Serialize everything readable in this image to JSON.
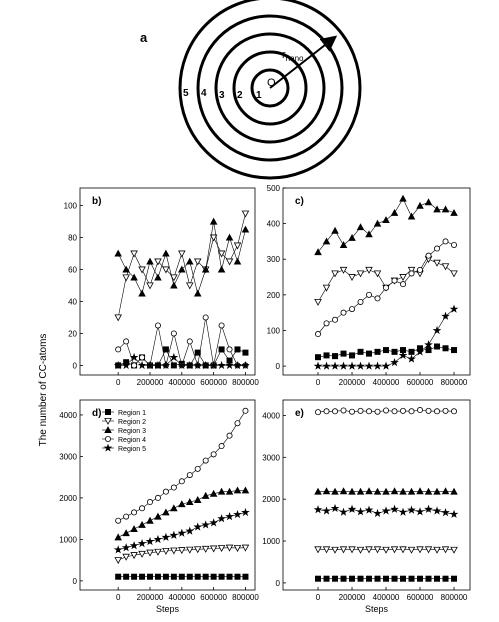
{
  "diagram": {
    "label": "a",
    "center": "O",
    "regions": [
      "1",
      "2",
      "3",
      "4",
      "5"
    ],
    "radius_label": "r",
    "radius_sub": "nano"
  },
  "ylabel": "The number of CC-atoms",
  "chart_data": [
    {
      "type": "line",
      "label": "b)",
      "x": [
        0,
        50000,
        100000,
        150000,
        200000,
        250000,
        300000,
        350000,
        400000,
        450000,
        500000,
        550000,
        600000,
        650000,
        700000,
        750000,
        800000
      ],
      "xlim": [
        -240000,
        860000
      ],
      "xticks": [
        0,
        200000,
        400000,
        600000,
        800000
      ],
      "ylim": [
        -6,
        111
      ],
      "yticks": [
        0,
        20,
        40,
        60,
        80,
        100
      ],
      "series": [
        {
          "marker": "square",
          "color": "#000000",
          "values": [
            0,
            2,
            0,
            5,
            0,
            0,
            10,
            0,
            1,
            0,
            8,
            0,
            0,
            10,
            3,
            10,
            8
          ]
        },
        {
          "marker": "tri-down",
          "color": "#000000",
          "values": [
            30,
            55,
            70,
            60,
            50,
            65,
            60,
            55,
            70,
            50,
            65,
            60,
            80,
            70,
            65,
            75,
            95
          ]
        },
        {
          "marker": "tri-up",
          "color": "#000000",
          "values": [
            70,
            60,
            55,
            45,
            65,
            55,
            70,
            50,
            60,
            65,
            45,
            60,
            90,
            60,
            80,
            65,
            85
          ]
        },
        {
          "marker": "circle",
          "color": "#000000",
          "values": [
            10,
            15,
            0,
            5,
            0,
            25,
            0,
            20,
            0,
            15,
            0,
            30,
            0,
            25,
            10,
            0,
            0
          ]
        },
        {
          "marker": "star",
          "color": "#000000",
          "values": [
            0,
            0,
            5,
            0,
            0,
            0,
            0,
            5,
            0,
            0,
            0,
            0,
            0,
            0,
            0,
            0,
            0
          ]
        }
      ]
    },
    {
      "type": "line",
      "label": "c)",
      "x": [
        0,
        50000,
        100000,
        150000,
        200000,
        250000,
        300000,
        350000,
        400000,
        450000,
        500000,
        550000,
        600000,
        650000,
        700000,
        750000,
        800000
      ],
      "xlim": [
        -206000,
        894000
      ],
      "xticks": [
        0,
        200000,
        400000,
        600000,
        800000
      ],
      "ylim": [
        -25,
        500
      ],
      "yticks": [
        0,
        100,
        200,
        300,
        400,
        500
      ],
      "series": [
        {
          "marker": "square",
          "color": "#000000",
          "values": [
            25,
            30,
            28,
            35,
            30,
            40,
            35,
            40,
            45,
            40,
            45,
            40,
            50,
            45,
            55,
            50,
            45
          ]
        },
        {
          "marker": "tri-down",
          "color": "#000000",
          "values": [
            180,
            220,
            260,
            270,
            250,
            260,
            270,
            260,
            220,
            240,
            250,
            270,
            260,
            300,
            290,
            280,
            260
          ]
        },
        {
          "marker": "tri-up",
          "color": "#000000",
          "values": [
            320,
            350,
            380,
            340,
            360,
            390,
            370,
            400,
            410,
            430,
            470,
            420,
            450,
            460,
            440,
            440,
            430
          ]
        },
        {
          "marker": "circle",
          "color": "#000000",
          "values": [
            90,
            120,
            130,
            150,
            160,
            180,
            200,
            190,
            220,
            240,
            230,
            260,
            270,
            310,
            330,
            350,
            340
          ]
        },
        {
          "marker": "star",
          "color": "#000000",
          "values": [
            0,
            0,
            0,
            0,
            0,
            0,
            0,
            0,
            0,
            10,
            30,
            20,
            40,
            60,
            100,
            140,
            160
          ]
        }
      ]
    },
    {
      "type": "line",
      "label": "d)",
      "xlabel": "Steps",
      "legend": "upper left",
      "x": [
        0,
        50000,
        100000,
        150000,
        200000,
        250000,
        300000,
        350000,
        400000,
        450000,
        500000,
        550000,
        600000,
        650000,
        700000,
        750000,
        800000
      ],
      "xlim": [
        -240000,
        860000
      ],
      "xticks": [
        0,
        200000,
        400000,
        600000,
        800000
      ],
      "ylim": [
        -220,
        4360
      ],
      "yticks": [
        0,
        1000,
        2000,
        3000,
        4000
      ],
      "series": [
        {
          "name": "Region 1",
          "marker": "square",
          "color": "#000000",
          "values": [
            100,
            100,
            100,
            100,
            100,
            100,
            100,
            100,
            100,
            100,
            100,
            100,
            100,
            100,
            100,
            100,
            100
          ]
        },
        {
          "name": "Region 2",
          "marker": "tri-down",
          "color": "#000000",
          "values": [
            500,
            580,
            620,
            650,
            680,
            700,
            720,
            730,
            740,
            750,
            760,
            770,
            780,
            790,
            800,
            790,
            800
          ]
        },
        {
          "name": "Region 3",
          "marker": "tri-up",
          "color": "#000000",
          "values": [
            1050,
            1150,
            1250,
            1350,
            1450,
            1550,
            1650,
            1750,
            1850,
            1900,
            1950,
            2050,
            2100,
            2150,
            2150,
            2180,
            2180
          ]
        },
        {
          "name": "Region 4",
          "marker": "circle",
          "color": "#000000",
          "values": [
            1450,
            1550,
            1650,
            1750,
            1900,
            2000,
            2150,
            2250,
            2400,
            2550,
            2700,
            2900,
            3050,
            3250,
            3500,
            3800,
            4100
          ]
        },
        {
          "name": "Region 5",
          "marker": "star",
          "color": "#000000",
          "values": [
            750,
            800,
            850,
            900,
            950,
            1000,
            1050,
            1100,
            1150,
            1200,
            1300,
            1350,
            1400,
            1500,
            1550,
            1600,
            1650
          ]
        }
      ]
    },
    {
      "type": "line",
      "label": "e)",
      "xlabel": "Steps",
      "x": [
        0,
        50000,
        100000,
        150000,
        200000,
        250000,
        300000,
        350000,
        400000,
        450000,
        500000,
        550000,
        600000,
        650000,
        700000,
        750000,
        800000
      ],
      "xlim": [
        -206000,
        894000
      ],
      "xticks": [
        0,
        200000,
        400000,
        600000,
        800000
      ],
      "ylim": [
        -170,
        4370
      ],
      "yticks": [
        0,
        1000,
        2000,
        3000,
        4000
      ],
      "series": [
        {
          "marker": "square",
          "color": "#000000",
          "values": [
            100,
            100,
            100,
            100,
            100,
            100,
            100,
            100,
            100,
            100,
            100,
            100,
            100,
            100,
            100,
            100,
            100
          ]
        },
        {
          "marker": "tri-down",
          "color": "#000000",
          "values": [
            800,
            800,
            790,
            800,
            800,
            790,
            800,
            800,
            790,
            800,
            800,
            790,
            800,
            800,
            790,
            800,
            790
          ]
        },
        {
          "marker": "tri-up",
          "color": "#000000",
          "values": [
            2180,
            2190,
            2180,
            2190,
            2180,
            2180,
            2190,
            2180,
            2180,
            2190,
            2180,
            2180,
            2190,
            2180,
            2180,
            2190,
            2180
          ]
        },
        {
          "marker": "circle",
          "color": "#000000",
          "values": [
            4080,
            4100,
            4100,
            4120,
            4090,
            4110,
            4100,
            4090,
            4120,
            4100,
            4110,
            4100,
            4130,
            4110,
            4100,
            4110,
            4100
          ]
        },
        {
          "marker": "star",
          "color": "#000000",
          "values": [
            1750,
            1720,
            1780,
            1690,
            1760,
            1700,
            1740,
            1660,
            1720,
            1760,
            1690,
            1740,
            1700,
            1760,
            1720,
            1680,
            1640
          ]
        }
      ]
    }
  ]
}
